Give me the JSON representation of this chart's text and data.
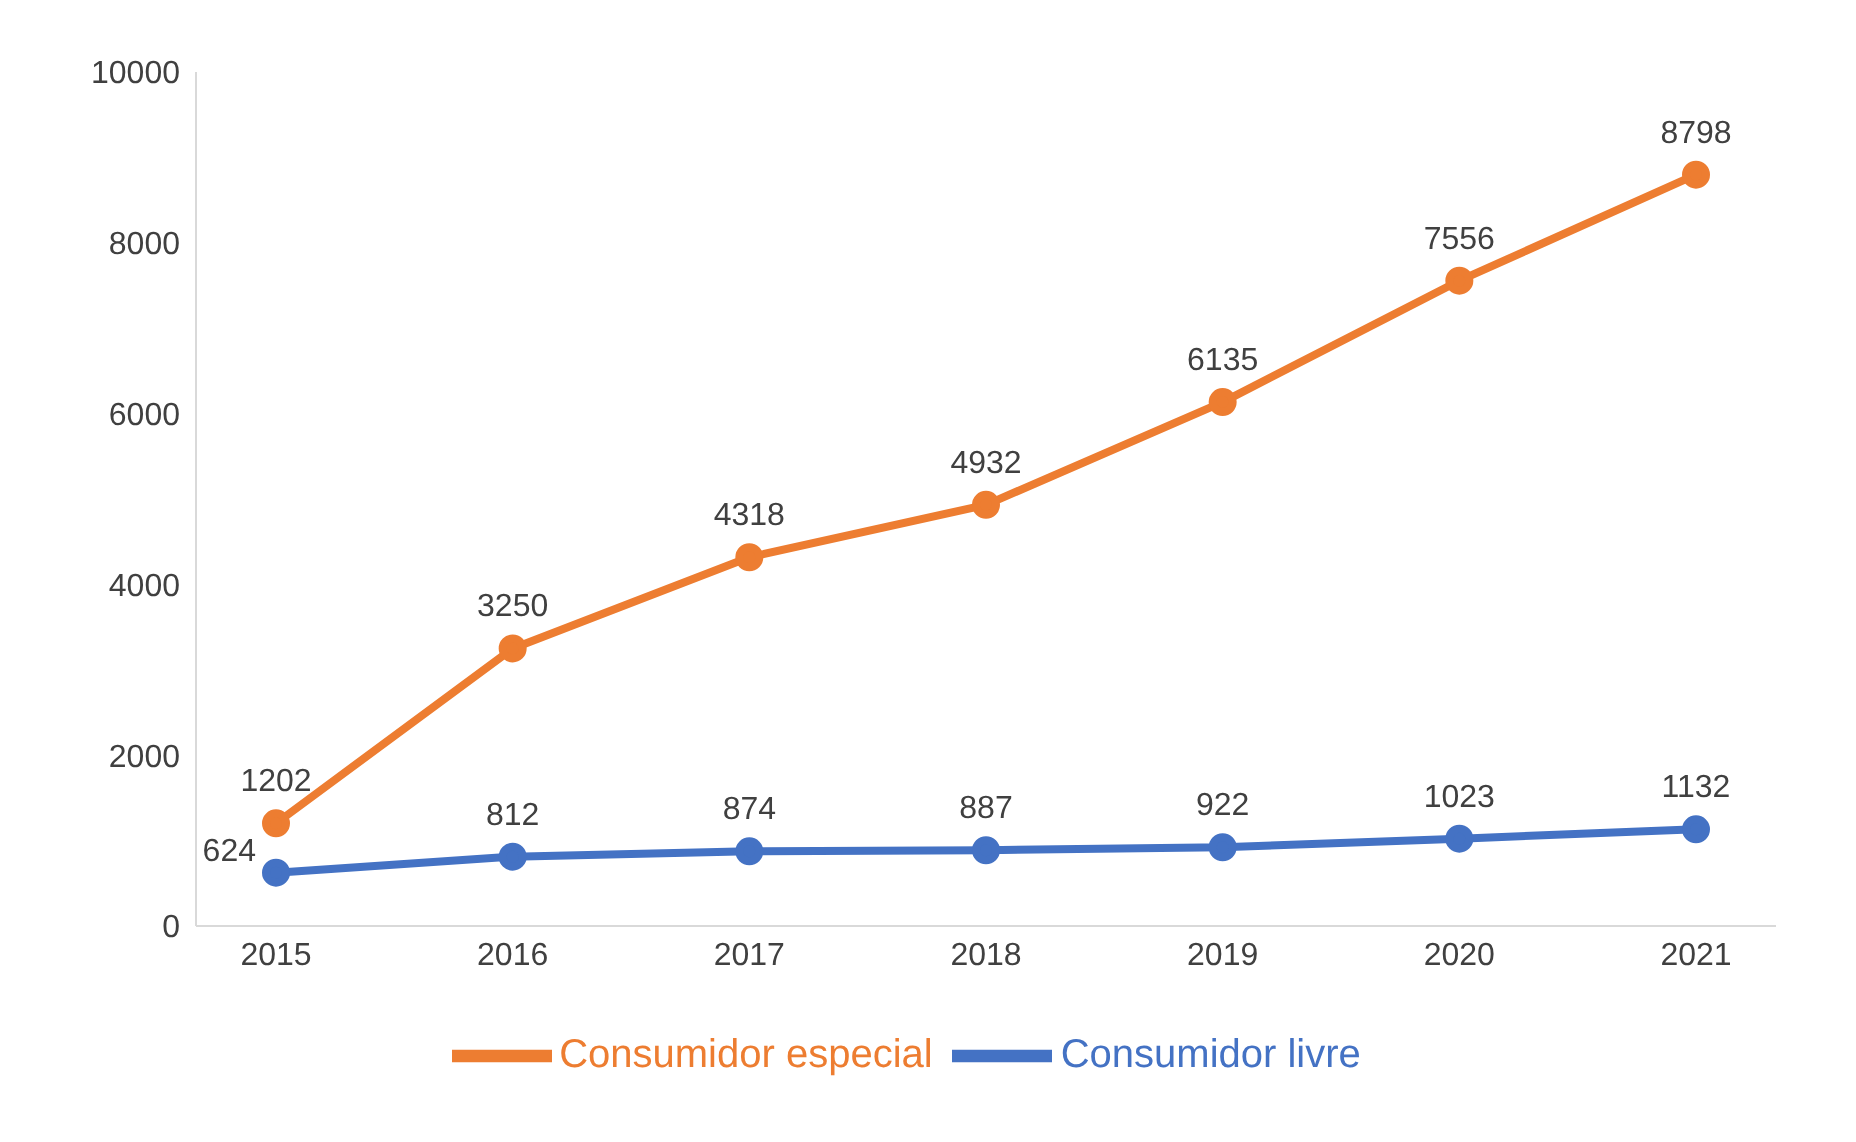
{
  "chart_data": {
    "type": "line",
    "categories": [
      "2015",
      "2016",
      "2017",
      "2018",
      "2019",
      "2020",
      "2021"
    ],
    "series": [
      {
        "name": "Consumidor livre",
        "color": "#4472c4",
        "values": [
          624,
          812,
          874,
          887,
          922,
          1023,
          1132
        ]
      },
      {
        "name": "Consumidor especial",
        "color": "#ed7d31",
        "values": [
          1202,
          3250,
          4318,
          4932,
          6135,
          7556,
          8798
        ]
      }
    ],
    "ylim": [
      0,
      10000
    ],
    "yticks": [
      0,
      2000,
      4000,
      6000,
      8000,
      10000
    ],
    "grid": false,
    "legend": "bottom",
    "marker": "circle",
    "line_style": "solid",
    "data_labels": true
  }
}
